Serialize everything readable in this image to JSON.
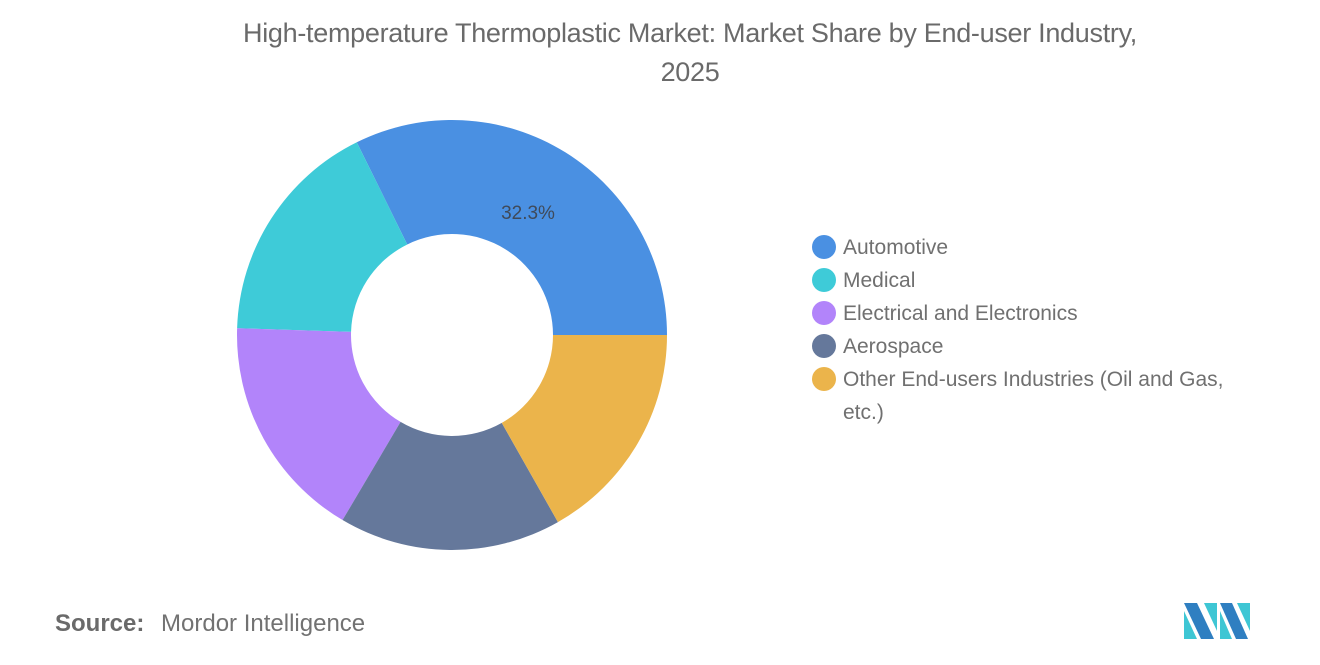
{
  "title": "High-temperature Thermoplastic Market: Market Share by End-user Industry,",
  "title_line2": "2025",
  "source": {
    "label": "Source:",
    "value": "Mordor Intelligence"
  },
  "chart_data": {
    "type": "pie",
    "variant": "donut",
    "title": "High-temperature Thermoplastic Market: Market Share by End-user Industry, 2025",
    "categories": [
      "Automotive",
      "Medical",
      "Electrical and Electronics",
      "Aerospace",
      "Other End-users Industries (Oil and Gas, etc.)"
    ],
    "values": [
      32.3,
      17.2,
      17.0,
      16.7,
      16.8
    ],
    "colors": [
      "#4a90e2",
      "#3ecbd8",
      "#b284fa",
      "#65789b",
      "#ebb44b"
    ],
    "data_labels": [
      {
        "category": "Automotive",
        "text": "32.3%"
      }
    ],
    "legend_position": "right",
    "start_angle": "3 o'clock, counterclockwise"
  },
  "legend": {
    "items": [
      {
        "label": "Automotive",
        "color": "#4a90e2"
      },
      {
        "label": "Medical",
        "color": "#3ecbd8"
      },
      {
        "label": "Electrical and Electronics",
        "color": "#b284fa"
      },
      {
        "label": "Aerospace",
        "color": "#65789b"
      },
      {
        "label": "Other End-users Industries (Oil and Gas, etc.)",
        "color": "#ebb44b"
      }
    ]
  },
  "donut_label": "32.3%"
}
